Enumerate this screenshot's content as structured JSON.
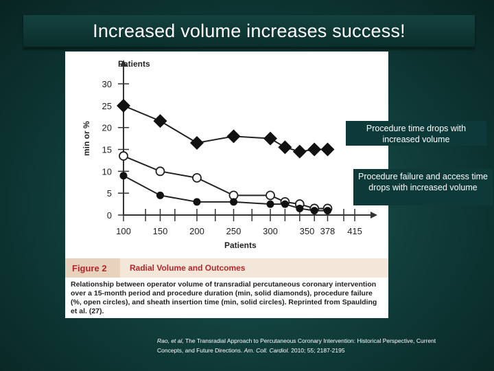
{
  "slide": {
    "title": "Increased volume increases success!",
    "callouts": [
      "Procedure time drops with increased volume",
      "Procedure failure and access time drops with increased volume"
    ],
    "citation": {
      "author": "Rao, et al,",
      "text": " The Transradial Approach to Percutaneous Coronary Intervention: Historical Perspective, Current Concepts, and Future Directions. ",
      "journal": "Am. Coll. Cardiol.",
      "ref": " 2010; 55; 2187-2195"
    }
  },
  "figure": {
    "label": "Figure 2",
    "title": "Radial Volume and Outcomes",
    "caption": "Relationship between operator volume of transradial percutaneous coronary intervention over a 15-month period and procedure duration (min, solid diamonds), procedure failure (%, open circles), and sheath insertion time (min, solid circles). Reprinted from Spaulding et al. (27)."
  },
  "chart_data": {
    "type": "line",
    "top_label": "Patients",
    "xlabel": "Patients",
    "ylabel": "min or %",
    "ylim": [
      0,
      30
    ],
    "yticks": [
      0,
      5,
      10,
      15,
      20,
      25,
      30
    ],
    "x": [
      100,
      130,
      150,
      170,
      200,
      225,
      250,
      275,
      300,
      320,
      340,
      360,
      378,
      400,
      415
    ],
    "xtick_labels": [
      "100",
      "150",
      "200",
      "250",
      "300",
      "350",
      "378",
      "415"
    ],
    "xtick_positions": [
      100,
      150,
      200,
      250,
      300,
      350,
      378,
      415
    ],
    "series": [
      {
        "marker": "solid-diamond",
        "x": [
          100,
          150,
          200,
          250,
          300,
          320,
          340,
          360,
          378
        ],
        "values": [
          25,
          21.5,
          16.5,
          18,
          17.5,
          15.5,
          14.5,
          15,
          15
        ]
      },
      {
        "marker": "open-circle",
        "x": [
          100,
          150,
          200,
          250,
          300,
          320,
          340,
          360,
          378
        ],
        "values": [
          13.5,
          10,
          8.5,
          4.5,
          4.5,
          3,
          2.5,
          1.5,
          1.5
        ]
      },
      {
        "marker": "solid-circle",
        "x": [
          100,
          150,
          200,
          250,
          300,
          320,
          340,
          360,
          378
        ],
        "values": [
          9,
          4.5,
          3,
          3,
          2.5,
          2.5,
          1.5,
          1,
          1
        ]
      }
    ]
  }
}
